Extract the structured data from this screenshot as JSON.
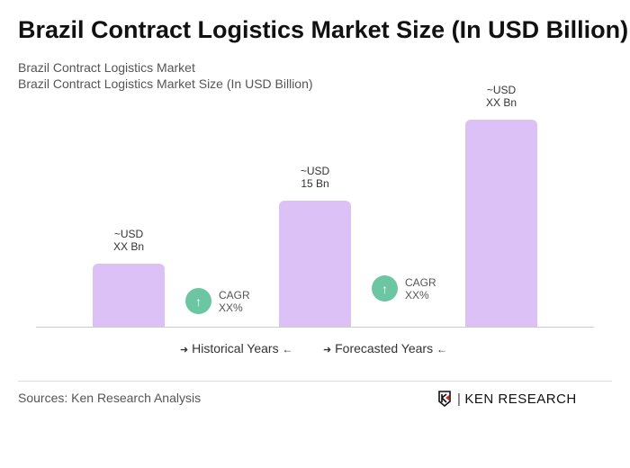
{
  "chart_data": {
    "type": "bar",
    "title": "Brazil Contract Logistics Market Size (In USD Billion)",
    "subtitle_1": "Brazil Contract Logistics Market",
    "subtitle_2": "Brazil Contract Logistics Market Size (In USD Billion)",
    "values": [
      7.5,
      15,
      24.6
    ],
    "data_labels": [
      [
        "~USD",
        "XX Bn"
      ],
      [
        "~USD",
        "15 Bn"
      ],
      [
        "~USD",
        "XX Bn"
      ]
    ],
    "cagr": [
      {
        "label": "CAGR",
        "value": "XX%"
      },
      {
        "label": "CAGR",
        "value": "XX%"
      }
    ],
    "legend": {
      "historical": "Historical Years",
      "forecasted": "Forecasted Years"
    },
    "colors": {
      "bar": "#dcc1f6",
      "cagr": "#6dc6a2"
    }
  },
  "footer": {
    "sources": "Sources: Ken Research Analysis",
    "logo": "KEN RESEARCH"
  }
}
